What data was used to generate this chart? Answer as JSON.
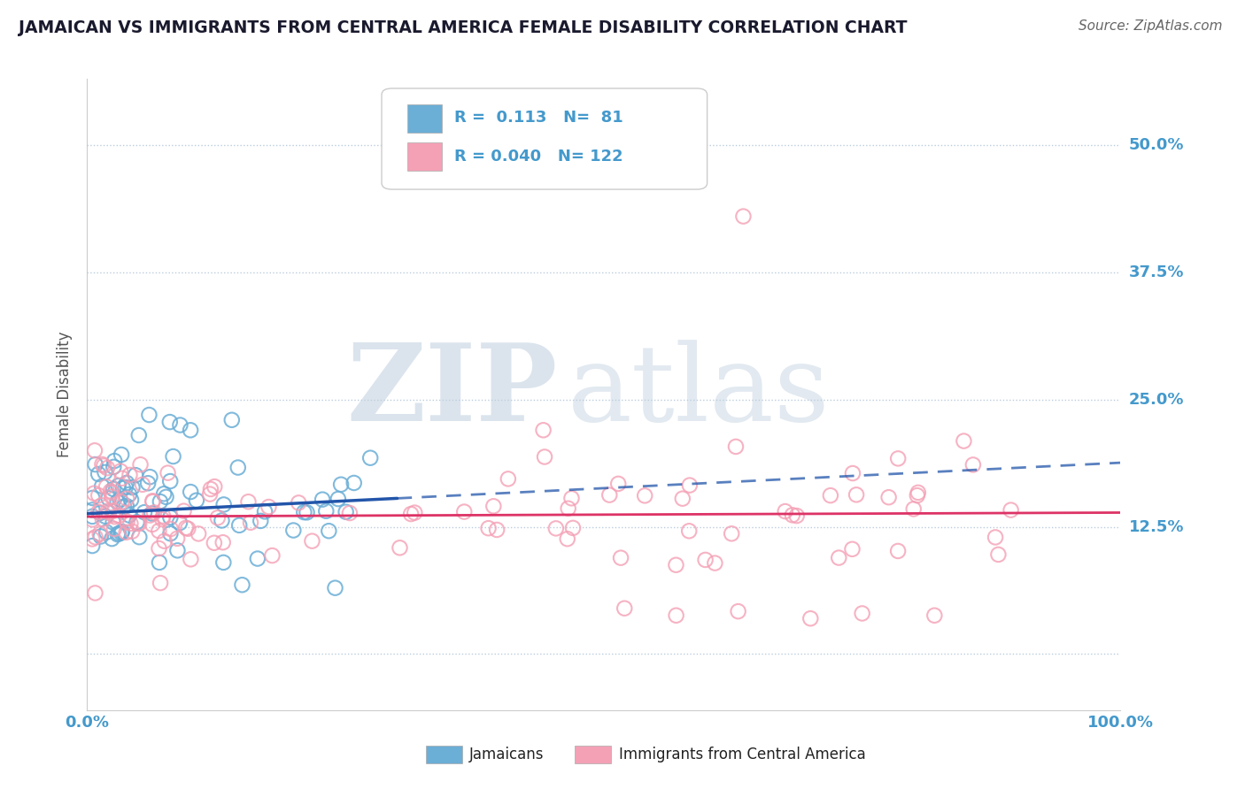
{
  "title": "JAMAICAN VS IMMIGRANTS FROM CENTRAL AMERICA FEMALE DISABILITY CORRELATION CHART",
  "source": "Source: ZipAtlas.com",
  "ylabel": "Female Disability",
  "blue_label": "Jamaicans",
  "pink_label": "Immigrants from Central America",
  "blue_R": "0.113",
  "blue_N": "81",
  "pink_R": "0.040",
  "pink_N": "122",
  "xlim": [
    0,
    1
  ],
  "ylim": [
    -0.055,
    0.565
  ],
  "yticks": [
    0.0,
    0.125,
    0.25,
    0.375,
    0.5
  ],
  "ytick_labels": [
    "",
    "12.5%",
    "25.0%",
    "37.5%",
    "50.0%"
  ],
  "blue_color": "#6BAED6",
  "pink_color": "#F4A0B5",
  "blue_line_color": "#2255AA",
  "pink_line_color": "#DD3366",
  "grid_color": "#BBCCDD",
  "axis_tick_color": "#4499CC",
  "background_color": "#FFFFFF",
  "watermark_zip_color": "#C5D5E5",
  "watermark_atlas_color": "#C8D8E8"
}
